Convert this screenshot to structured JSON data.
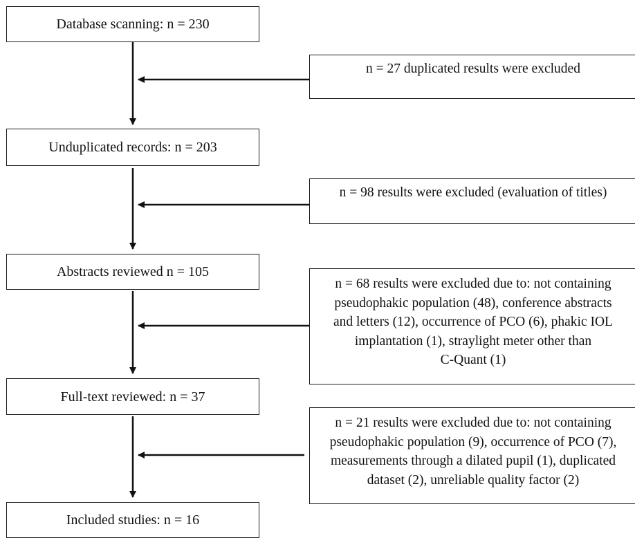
{
  "stages": [
    {
      "id": "stage-database-scanning",
      "label": "Database scanning: n = 230"
    },
    {
      "id": "stage-unduplicated-records",
      "label": "Unduplicated records: n = 203"
    },
    {
      "id": "stage-abstracts-reviewed",
      "label": "Abstracts reviewed n = 105"
    },
    {
      "id": "stage-full-text-reviewed",
      "label": "Full-text reviewed: n = 37"
    },
    {
      "id": "stage-included-studies",
      "label": "Included studies: n = 16"
    }
  ],
  "exclusions": [
    {
      "id": "exclusion-duplicates",
      "text": "n = 27 duplicated results were excluded"
    },
    {
      "id": "exclusion-titles",
      "text": "n = 98 results were excluded (evaluation of titles)"
    },
    {
      "id": "exclusion-abstracts",
      "lines": [
        "n = 68 results were excluded due to: not containing",
        "pseudophakic population (48), conference abstracts",
        "and letters (12), occurrence of PCO (6),  phakic IOL",
        "implantation (1), straylight meter other than",
        "C-Quant (1)"
      ]
    },
    {
      "id": "exclusion-full-text",
      "lines": [
        "n = 21 results were excluded due to: not containing",
        "pseudophakic population (9), occurrence of PCO (7),",
        "measurements through a dilated pupil (1), duplicated",
        "dataset (2), unreliable quality factor (2)"
      ]
    }
  ]
}
